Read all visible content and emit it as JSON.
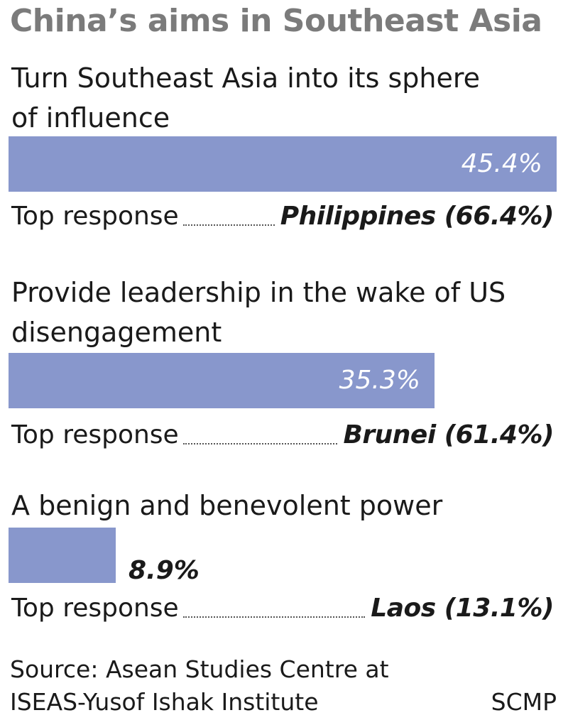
{
  "chart_data": {
    "type": "bar",
    "title": "China’s aims in Southeast Asia",
    "categories": [
      "Turn Southeast Asia into its sphere of influence",
      "Provide leadership in the wake of US disengagement",
      "A benign and benevolent power"
    ],
    "values": [
      45.4,
      35.3,
      8.9
    ],
    "value_labels": [
      "45.4%",
      "35.3%",
      "8.9%"
    ],
    "unit": "%",
    "top_responses": [
      {
        "label": "Top response",
        "country": "Philippines (66.4%)",
        "value": 66.4
      },
      {
        "label": "Top response",
        "country": "Brunei (61.4%)",
        "value": 61.4
      },
      {
        "label": "Top response",
        "country": "Laos (13.1%)",
        "value": 13.1
      }
    ],
    "xlim": [
      0,
      45.4
    ],
    "orientation": "horizontal",
    "bar_color": "#8897cc",
    "grid": false,
    "legend": "none"
  },
  "source": {
    "line1": "Source: Asean Studies Centre at",
    "line2": "ISEAS-Yusof Ishak Institute"
  },
  "brand": "SCMP",
  "colors": {
    "title": "#7b7b7b",
    "bar": "#8897cc",
    "text": "#1a1a1a"
  }
}
